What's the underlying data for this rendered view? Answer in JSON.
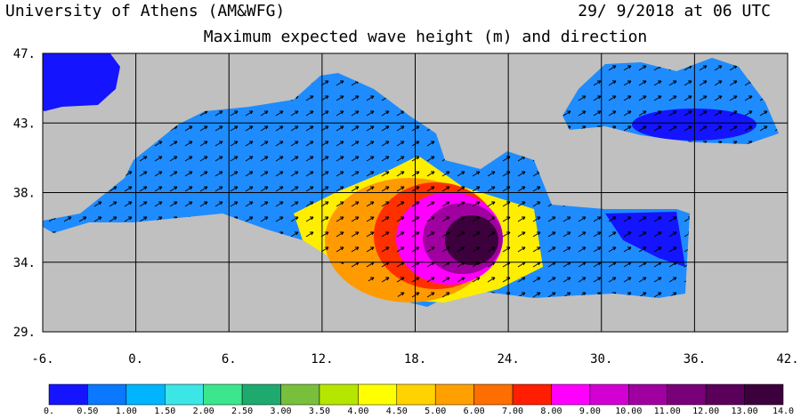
{
  "chart_data": {
    "type": "map",
    "source": "University of Athens (AM&WFG)",
    "valid_time": "29/ 9/2018 at 06 UTC",
    "title": "Maximum expected wave height (m) and direction",
    "xlim": [
      -6,
      42
    ],
    "ylim": [
      29,
      47
    ],
    "xticks": [
      {
        "value": -6,
        "label": "-6."
      },
      {
        "value": 0,
        "label": "0."
      },
      {
        "value": 6,
        "label": "6."
      },
      {
        "value": 12,
        "label": "12."
      },
      {
        "value": 18,
        "label": "18."
      },
      {
        "value": 24,
        "label": "24."
      },
      {
        "value": 30,
        "label": "30."
      },
      {
        "value": 36,
        "label": "36."
      },
      {
        "value": 42,
        "label": "42."
      }
    ],
    "yticks": [
      {
        "value": 47,
        "label": "47."
      },
      {
        "value": 42.5,
        "label": "43."
      },
      {
        "value": 38,
        "label": "38."
      },
      {
        "value": 33.5,
        "label": "34."
      },
      {
        "value": 29,
        "label": "29."
      }
    ],
    "grid": true,
    "colorbar": {
      "levels": [
        {
          "value": 0,
          "label": "0."
        },
        {
          "value": 0.5,
          "label": "0.50"
        },
        {
          "value": 1,
          "label": "1.00"
        },
        {
          "value": 1.5,
          "label": "1.50"
        },
        {
          "value": 2,
          "label": "2.00"
        },
        {
          "value": 2.5,
          "label": "2.50"
        },
        {
          "value": 3,
          "label": "3.00"
        },
        {
          "value": 3.5,
          "label": "3.50"
        },
        {
          "value": 4,
          "label": "4.00"
        },
        {
          "value": 4.5,
          "label": "4.50"
        },
        {
          "value": 5,
          "label": "5.00"
        },
        {
          "value": 6,
          "label": "6.00"
        },
        {
          "value": 7,
          "label": "7.00"
        },
        {
          "value": 8,
          "label": "8.00"
        },
        {
          "value": 9,
          "label": "9.00"
        },
        {
          "value": 10,
          "label": "10.00"
        },
        {
          "value": 11,
          "label": "11.00"
        },
        {
          "value": 12,
          "label": "12.00"
        },
        {
          "value": 13,
          "label": "13.00"
        },
        {
          "value": 14,
          "label": "14.0"
        }
      ],
      "colors": [
        "#1414ff",
        "#0a78ff",
        "#00b4ff",
        "#3ce6e6",
        "#3ce68c",
        "#1eaa6e",
        "#78c03c",
        "#b4e600",
        "#ffff00",
        "#ffd200",
        "#ffa000",
        "#ff6e00",
        "#ff1e00",
        "#ff00ff",
        "#d200d2",
        "#a000a0",
        "#780078",
        "#5a005a",
        "#3c003c"
      ]
    }
  }
}
